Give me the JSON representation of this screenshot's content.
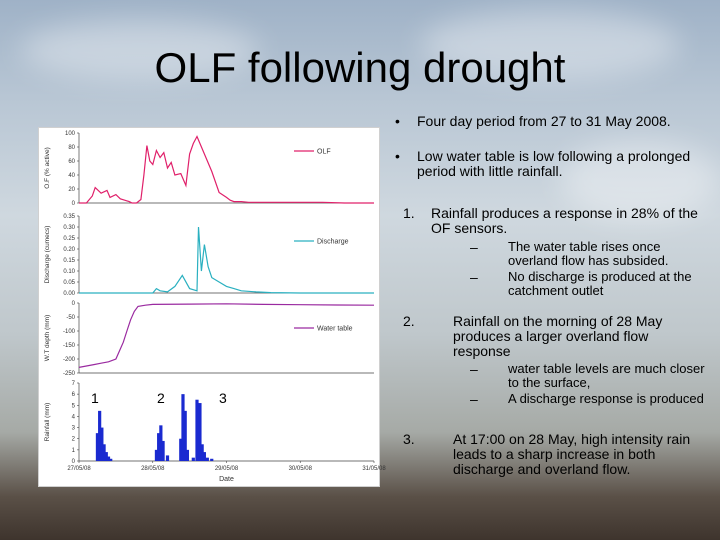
{
  "slide": {
    "title": "OLF following drought",
    "bullets": [
      "Four day period from 27 to 31 May 2008.",
      "Low water table is low following a prolonged period with little rainfall."
    ],
    "numbered": [
      {
        "num": "1.",
        "text": "Rainfall produces a response in 28% of the OF sensors.",
        "subs": [
          "The water table rises once overland flow has subsided.",
          "No discharge is produced at the catchment outlet"
        ]
      },
      {
        "num": "2.",
        "text": "Rainfall on the morning of 28 May produces a larger overland flow response",
        "subs": [
          "water table levels are much closer to the surface,",
          "A discharge response is produced"
        ]
      },
      {
        "num": "3.",
        "text": "At 17:00 on 28 May, high intensity rain leads to a sharp increase in both discharge and overland flow."
      }
    ],
    "sub_marker": "–",
    "bullet_marker": "•"
  },
  "chart_data": [
    {
      "type": "line",
      "ylabel": "O.F (% active)",
      "ylim": [
        0,
        100
      ],
      "yticks": [
        "100",
        "80",
        "60",
        "40",
        "20",
        "0"
      ],
      "series": [
        {
          "name": "OLF",
          "color": "#e0206a"
        }
      ],
      "x": [
        0,
        0.1,
        0.18,
        0.22,
        0.3,
        0.38,
        0.42,
        0.5,
        0.56,
        0.62,
        0.68,
        0.72,
        0.78,
        0.84,
        0.88,
        0.92,
        0.96,
        1,
        1.05,
        1.1,
        1.15,
        1.2,
        1.25,
        1.3,
        1.38,
        1.45,
        1.5,
        1.55,
        1.6,
        1.7,
        1.8,
        1.9,
        2.0,
        2.05,
        2.1,
        2.2,
        2.3,
        2.5,
        2.7,
        3,
        3.3,
        3.6,
        3.8,
        4
      ],
      "values": [
        0,
        0,
        10,
        22,
        14,
        18,
        8,
        12,
        6,
        4,
        2,
        0,
        0,
        5,
        40,
        82,
        60,
        55,
        75,
        65,
        72,
        50,
        58,
        40,
        42,
        25,
        70,
        85,
        95,
        70,
        45,
        15,
        8,
        4,
        2,
        2,
        1,
        1,
        1,
        1,
        1,
        0,
        0,
        0
      ]
    },
    {
      "type": "line",
      "ylabel": "Discharge (cumecs)",
      "ylim": [
        0,
        0.35
      ],
      "yticks": [
        "0.35",
        "0.30",
        "0.25",
        "0.20",
        "0.15",
        "0.10",
        "0.05",
        "0.00"
      ],
      "series": [
        {
          "name": "Discharge",
          "color": "#2ab0c0"
        }
      ],
      "x": [
        0,
        0.5,
        1.0,
        1.05,
        1.1,
        1.2,
        1.3,
        1.4,
        1.5,
        1.6,
        1.62,
        1.66,
        1.7,
        1.75,
        1.8,
        1.9,
        2.0,
        2.1,
        2.2,
        2.4,
        2.6,
        3,
        3.5,
        4
      ],
      "values": [
        0,
        0,
        0,
        0.02,
        0.01,
        0.005,
        0.03,
        0.08,
        0.02,
        0.01,
        0.3,
        0.1,
        0.22,
        0.12,
        0.07,
        0.05,
        0.03,
        0.02,
        0.01,
        0.005,
        0.002,
        0,
        0,
        0
      ]
    },
    {
      "type": "line",
      "ylabel": "W.T depth (mm)",
      "ylim": [
        -250,
        0
      ],
      "yticks": [
        "0",
        "-50",
        "-100",
        "-150",
        "-200",
        "-250"
      ],
      "series": [
        {
          "name": "Water table",
          "color": "#9a2aa0"
        }
      ],
      "x": [
        0,
        0.1,
        0.2,
        0.3,
        0.4,
        0.5,
        0.55,
        0.6,
        0.65,
        0.7,
        0.75,
        0.8,
        0.9,
        1.0,
        1.5,
        2.0,
        2.5,
        3.0,
        3.5,
        4
      ],
      "values": [
        -230,
        -225,
        -220,
        -215,
        -210,
        -200,
        -170,
        -140,
        -100,
        -60,
        -30,
        -12,
        -8,
        -5,
        -4,
        -3,
        -5,
        -6,
        -7,
        -8
      ]
    },
    {
      "type": "bar",
      "xlabel": "Date",
      "ylabel": "Rainfall (mm)",
      "ylim": [
        0,
        7
      ],
      "yticks": [
        "7",
        "6",
        "5",
        "4",
        "3",
        "2",
        "1",
        "0"
      ],
      "xticks": [
        "27/05/08",
        "28/05/08",
        "29/05/08",
        "30/05/08",
        "31/05/08"
      ],
      "series": [
        {
          "name": "Rainfall",
          "color": "#1a2ad0"
        }
      ],
      "x": [
        0.25,
        0.28,
        0.31,
        0.34,
        0.37,
        0.4,
        0.43,
        1.05,
        1.08,
        1.11,
        1.14,
        1.2,
        1.38,
        1.41,
        1.44,
        1.47,
        1.55,
        1.6,
        1.64,
        1.67,
        1.7,
        1.74,
        1.8
      ],
      "values": [
        2.5,
        4.5,
        3.0,
        1.5,
        0.8,
        0.4,
        0.2,
        1.0,
        2.5,
        3.2,
        1.8,
        0.5,
        2.0,
        6.0,
        4.5,
        1.0,
        0.3,
        5.5,
        5.2,
        1.5,
        0.8,
        0.3,
        0.2
      ],
      "annotations": [
        "1",
        "2",
        "3"
      ]
    }
  ]
}
